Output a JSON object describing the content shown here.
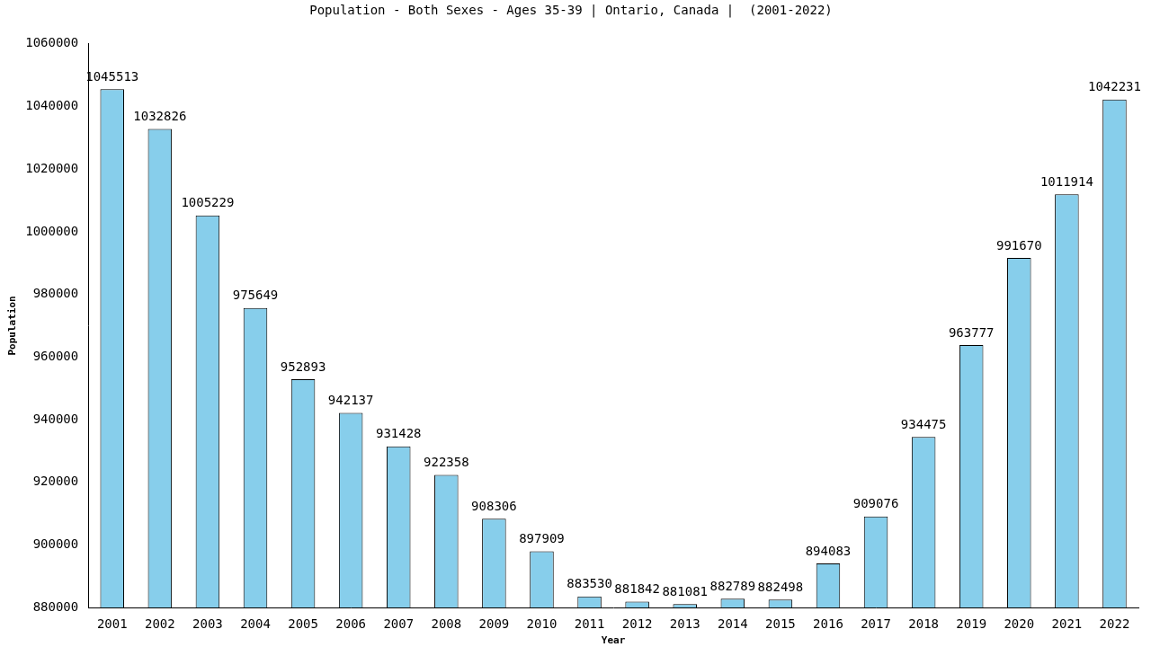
{
  "chart_data": {
    "type": "bar",
    "title": "Population - Both Sexes - Ages 35-39 | Ontario, Canada |  (2001-2022)",
    "x_label": "Year",
    "y_label": "Population",
    "categories": [
      "2001",
      "2002",
      "2003",
      "2004",
      "2005",
      "2006",
      "2007",
      "2008",
      "2009",
      "2010",
      "2011",
      "2012",
      "2013",
      "2014",
      "2015",
      "2016",
      "2017",
      "2018",
      "2019",
      "2020",
      "2021",
      "2022"
    ],
    "values": [
      1045513,
      1032826,
      1005229,
      975649,
      952893,
      942137,
      931428,
      922358,
      908306,
      897909,
      883530,
      881842,
      881081,
      882789,
      882498,
      894083,
      909076,
      934475,
      963777,
      991670,
      1011914,
      1042231
    ],
    "color": "#87ceeb",
    "ylim": [
      880000,
      1060000
    ],
    "yticks": [
      880000,
      900000,
      920000,
      940000,
      960000,
      980000,
      1000000,
      1020000,
      1040000,
      1060000
    ],
    "grid": false,
    "data_labels": true
  }
}
